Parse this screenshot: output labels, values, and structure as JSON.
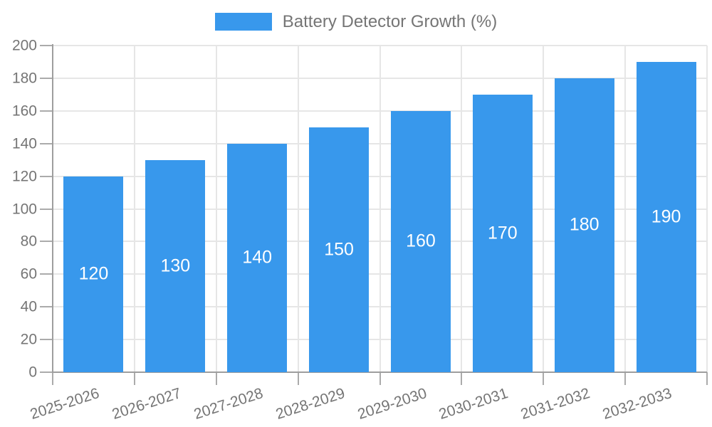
{
  "chart_data": {
    "type": "bar",
    "title": "Battery Detector Growth (%)",
    "legend": {
      "label": "Battery Detector Growth (%)",
      "position": "top-center"
    },
    "categories": [
      "2025-2026",
      "2026-2027",
      "2027-2028",
      "2028-2029",
      "2029-2030",
      "2030-2031",
      "2031-2032",
      "2032-2033"
    ],
    "values": [
      120,
      130,
      140,
      150,
      160,
      170,
      180,
      190
    ],
    "xlabel": "",
    "ylabel": "",
    "ylim": [
      0,
      200
    ],
    "y_tick_step": 20,
    "grid": "on",
    "x_label_rotation_deg": -18,
    "colors": {
      "bar": "#3898EC",
      "bar_value_label": "#FFFFFF",
      "axis_line": "#9E9E9E",
      "tick_mark": "#ABABAB",
      "gridline": "#E6E6E6",
      "tick_label": "#757575",
      "legend_text": "#757575",
      "background": "#FFFFFF"
    }
  }
}
